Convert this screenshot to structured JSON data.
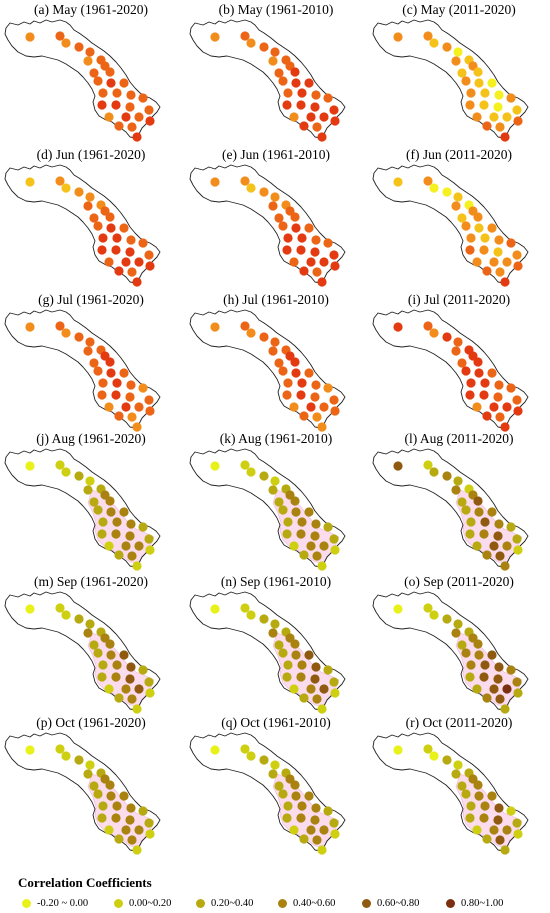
{
  "legend": {
    "title": "Correlation Coefficients",
    "classes": [
      {
        "label": "-0.20 ~ 0.00",
        "color": "#e8f21a"
      },
      {
        "label": "0.00~0.20",
        "color": "#cfcf12"
      },
      {
        "label": "0.20~0.40",
        "color": "#b7aa10"
      },
      {
        "label": "0.40~0.60",
        "color": "#a98210"
      },
      {
        "label": "0.60~0.80",
        "color": "#8f5a10"
      },
      {
        "label": "0.80~1.00",
        "color": "#7a3010"
      }
    ]
  },
  "palette": {
    "orange": "#f28c1a",
    "dark_orange": "#ec6416",
    "red": "#e33a12",
    "bright_yellow": "#f5f01f",
    "yellow_orange": "#f5c21a",
    "pink_shade": "#fbd6ea",
    "boundary": "#222222"
  },
  "panels": [
    {
      "label": "(a) May (1961-2020)",
      "scheme": "warm",
      "shade": false,
      "colors": [
        "orange",
        "dark_orange",
        "orange",
        "dark_orange",
        "dark_orange",
        "orange",
        "dark_orange",
        "dark_orange",
        "dark_orange",
        "dark_orange",
        "dark_orange",
        "red",
        "dark_orange",
        "dark_orange",
        "dark_orange",
        "dark_orange",
        "red",
        "red",
        "dark_orange",
        "dark_orange",
        "red",
        "dark_orange",
        "orange",
        "dark_orange",
        "dark_orange",
        "dark_orange",
        "red",
        "red"
      ]
    },
    {
      "label": "(b) May (1961-2010)",
      "scheme": "warm",
      "shade": false,
      "colors": [
        "orange",
        "dark_orange",
        "orange",
        "dark_orange",
        "dark_orange",
        "orange",
        "dark_orange",
        "dark_orange",
        "dark_orange",
        "red",
        "dark_orange",
        "red",
        "red",
        "dark_orange",
        "red",
        "dark_orange",
        "red",
        "red",
        "red",
        "dark_orange",
        "red",
        "red",
        "orange",
        "red",
        "dark_orange",
        "red",
        "red",
        "red"
      ]
    },
    {
      "label": "(c) May (2011-2020)",
      "scheme": "warm",
      "shade": false,
      "colors": [
        "orange",
        "orange",
        "yellow_orange",
        "orange",
        "bright_yellow",
        "orange",
        "yellow_orange",
        "orange",
        "yellow_orange",
        "yellow_orange",
        "orange",
        "yellow_orange",
        "bright_yellow",
        "orange",
        "yellow_orange",
        "bright_yellow",
        "orange",
        "yellow_orange",
        "bright_yellow",
        "orange",
        "yellow_orange",
        "yellow_orange",
        "orange",
        "dark_orange",
        "orange",
        "yellow_orange",
        "dark_orange",
        "red"
      ]
    },
    {
      "label": "(d) Jun (1961-2020)",
      "scheme": "warm",
      "shade": false,
      "colors": [
        "yellow_orange",
        "orange",
        "yellow_orange",
        "orange",
        "orange",
        "dark_orange",
        "orange",
        "dark_orange",
        "dark_orange",
        "dark_orange",
        "dark_orange",
        "red",
        "dark_orange",
        "red",
        "red",
        "dark_orange",
        "red",
        "red",
        "red",
        "dark_orange",
        "red",
        "red",
        "dark_orange",
        "red",
        "dark_orange",
        "dark_orange",
        "red",
        "red"
      ]
    },
    {
      "label": "(e) Jun (1961-2010)",
      "scheme": "warm",
      "shade": false,
      "colors": [
        "orange",
        "orange",
        "yellow_orange",
        "orange",
        "orange",
        "dark_orange",
        "orange",
        "dark_orange",
        "dark_orange",
        "dark_orange",
        "dark_orange",
        "red",
        "dark_orange",
        "red",
        "red",
        "dark_orange",
        "red",
        "red",
        "red",
        "dark_orange",
        "red",
        "red",
        "dark_orange",
        "red",
        "dark_orange",
        "red",
        "red",
        "red"
      ]
    },
    {
      "label": "(f) Jun (2011-2020)",
      "scheme": "warm",
      "shade": false,
      "colors": [
        "yellow_orange",
        "orange",
        "bright_yellow",
        "bright_yellow",
        "yellow_orange",
        "orange",
        "bright_yellow",
        "orange",
        "yellow_orange",
        "orange",
        "orange",
        "yellow_orange",
        "orange",
        "orange",
        "yellow_orange",
        "orange",
        "dark_orange",
        "orange",
        "yellow_orange",
        "dark_orange",
        "orange",
        "orange",
        "orange",
        "dark_orange",
        "orange",
        "orange",
        "dark_orange",
        "red"
      ]
    },
    {
      "label": "(g) Jul (1961-2020)",
      "scheme": "warm",
      "shade": false,
      "colors": [
        "orange",
        "dark_orange",
        "orange",
        "dark_orange",
        "dark_orange",
        "dark_orange",
        "dark_orange",
        "red",
        "dark_orange",
        "red",
        "dark_orange",
        "red",
        "dark_orange",
        "dark_orange",
        "red",
        "dark_orange",
        "dark_orange",
        "red",
        "dark_orange",
        "orange",
        "red",
        "dark_orange",
        "orange",
        "dark_orange",
        "orange",
        "dark_orange",
        "dark_orange",
        "orange"
      ]
    },
    {
      "label": "(h) Jul (1961-2010)",
      "scheme": "warm",
      "shade": false,
      "colors": [
        "orange",
        "dark_orange",
        "orange",
        "dark_orange",
        "dark_orange",
        "dark_orange",
        "dark_orange",
        "red",
        "dark_orange",
        "red",
        "dark_orange",
        "red",
        "dark_orange",
        "dark_orange",
        "red",
        "dark_orange",
        "dark_orange",
        "red",
        "dark_orange",
        "orange",
        "red",
        "dark_orange",
        "orange",
        "dark_orange",
        "orange",
        "dark_orange",
        "dark_orange",
        "orange"
      ]
    },
    {
      "label": "(i) Jul (2011-2020)",
      "scheme": "warm",
      "shade": false,
      "colors": [
        "red",
        "dark_orange",
        "orange",
        "red",
        "dark_orange",
        "dark_orange",
        "red",
        "red",
        "dark_orange",
        "red",
        "red",
        "red",
        "dark_orange",
        "red",
        "red",
        "dark_orange",
        "red",
        "red",
        "dark_orange",
        "dark_orange",
        "red",
        "red",
        "orange",
        "red",
        "dark_orange",
        "dark_orange",
        "red",
        "red"
      ]
    },
    {
      "label": "(j) Aug (1961-2020)",
      "scheme": "brown",
      "shade": true,
      "colors": [
        "c1",
        "c2",
        "c2",
        "c3",
        "c2",
        "c3",
        "c3",
        "c4",
        "c3",
        "c4",
        "c3",
        "c4",
        "c4",
        "c3",
        "c4",
        "c4",
        "c3",
        "c4",
        "c4",
        "c3",
        "c4",
        "c4",
        "c2",
        "c3",
        "c4",
        "c3",
        "c2",
        "c2"
      ]
    },
    {
      "label": "(k) Aug (1961-2010)",
      "scheme": "brown",
      "shade": true,
      "colors": [
        "c1",
        "c2",
        "c2",
        "c3",
        "c2",
        "c3",
        "c3",
        "c4",
        "c3",
        "c4",
        "c3",
        "c4",
        "c4",
        "c3",
        "c4",
        "c4",
        "c3",
        "c4",
        "c4",
        "c3",
        "c4",
        "c4",
        "c2",
        "c3",
        "c4",
        "c3",
        "c2",
        "c2"
      ]
    },
    {
      "label": "(l) Aug (2011-2020)",
      "scheme": "brown",
      "shade": true,
      "colors": [
        "c5",
        "c2",
        "c3",
        "c4",
        "c3",
        "c4",
        "c2",
        "c4",
        "c3",
        "c5",
        "c3",
        "c4",
        "c4",
        "c3",
        "c5",
        "c4",
        "c3",
        "c4",
        "c5",
        "c3",
        "c5",
        "c4",
        "c3",
        "c4",
        "c5",
        "c3",
        "c2",
        "c4"
      ]
    },
    {
      "label": "(m) Sep (1961-2020)",
      "scheme": "brown",
      "shade": true,
      "colors": [
        "c1",
        "c2",
        "c2",
        "c3",
        "c3",
        "c4",
        "c3",
        "c4",
        "c3",
        "c4",
        "c3",
        "c4",
        "c5",
        "c3",
        "c4",
        "c5",
        "c3",
        "c4",
        "c5",
        "c3",
        "c4",
        "c5",
        "c2",
        "c3",
        "c4",
        "c3",
        "c2",
        "c2"
      ]
    },
    {
      "label": "(n) Sep (1961-2010)",
      "scheme": "brown",
      "shade": true,
      "colors": [
        "c1",
        "c2",
        "c2",
        "c3",
        "c3",
        "c4",
        "c3",
        "c4",
        "c3",
        "c4",
        "c3",
        "c4",
        "c5",
        "c3",
        "c4",
        "c5",
        "c3",
        "c4",
        "c5",
        "c3",
        "c4",
        "c5",
        "c2",
        "c3",
        "c4",
        "c3",
        "c2",
        "c2"
      ]
    },
    {
      "label": "(o) Sep (2011-2020)",
      "scheme": "brown",
      "shade": true,
      "colors": [
        "c1",
        "c2",
        "c2",
        "c3",
        "c3",
        "c4",
        "c3",
        "c4",
        "c3",
        "c4",
        "c4",
        "c4",
        "c5",
        "c4",
        "c5",
        "c5",
        "c3",
        "c5",
        "c5",
        "c4",
        "c5",
        "c6",
        "c3",
        "c4",
        "c5",
        "c4",
        "c3",
        "c3"
      ]
    },
    {
      "label": "(p) Oct (1961-2020)",
      "scheme": "brown",
      "shade": true,
      "colors": [
        "c1",
        "c2",
        "c2",
        "c3",
        "c2",
        "c3",
        "c3",
        "c4",
        "c3",
        "c4",
        "c3",
        "c4",
        "c4",
        "c3",
        "c4",
        "c4",
        "c3",
        "c4",
        "c4",
        "c3",
        "c4",
        "c4",
        "c2",
        "c3",
        "c4",
        "c3",
        "c2",
        "c2"
      ]
    },
    {
      "label": "(q) Oct (1961-2010)",
      "scheme": "brown",
      "shade": true,
      "colors": [
        "c1",
        "c2",
        "c2",
        "c3",
        "c2",
        "c3",
        "c3",
        "c4",
        "c3",
        "c4",
        "c3",
        "c4",
        "c4",
        "c3",
        "c4",
        "c4",
        "c3",
        "c4",
        "c4",
        "c3",
        "c4",
        "c4",
        "c2",
        "c3",
        "c4",
        "c3",
        "c2",
        "c2"
      ]
    },
    {
      "label": "(r) Oct (2011-2020)",
      "scheme": "brown",
      "shade": true,
      "colors": [
        "c1",
        "c2",
        "c1",
        "c3",
        "c2",
        "c3",
        "c3",
        "c4",
        "c3",
        "c4",
        "c3",
        "c4",
        "c4",
        "c3",
        "c4",
        "c5",
        "c3",
        "c4",
        "c5",
        "c2",
        "c4",
        "c4",
        "c2",
        "c3",
        "c5",
        "c3",
        "c2",
        "c3"
      ]
    }
  ]
}
